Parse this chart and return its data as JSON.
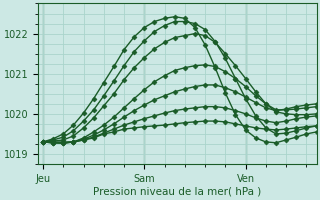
{
  "title": "Pression niveau de la mer( hPa )",
  "background_color": "#cce8e4",
  "grid_color": "#aad4cc",
  "line_color": "#1a5c28",
  "ylim": [
    1018.75,
    1022.65
  ],
  "yticks": [
    1019,
    1020,
    1021,
    1022
  ],
  "xtick_labels": [
    "Jeu",
    "Sam",
    "Ven"
  ],
  "xtick_positions": [
    0,
    10,
    20
  ],
  "xlim": [
    -0.5,
    27
  ],
  "series": [
    [
      1019.3,
      1019.3,
      1019.3,
      1019.3,
      1019.35,
      1019.4,
      1019.5,
      1019.55,
      1019.62,
      1019.65,
      1019.68,
      1019.7,
      1019.72,
      1019.75,
      1019.78,
      1019.8,
      1019.82,
      1019.82,
      1019.8,
      1019.75,
      1019.7,
      1019.65,
      1019.62,
      1019.6,
      1019.62,
      1019.65,
      1019.68,
      1019.7
    ],
    [
      1019.3,
      1019.28,
      1019.28,
      1019.3,
      1019.35,
      1019.42,
      1019.52,
      1019.62,
      1019.72,
      1019.8,
      1019.88,
      1019.95,
      1020.02,
      1020.08,
      1020.12,
      1020.15,
      1020.18,
      1020.18,
      1020.15,
      1020.08,
      1020.0,
      1019.9,
      1019.82,
      1019.78,
      1019.82,
      1019.88,
      1019.92,
      1019.95
    ],
    [
      1019.3,
      1019.28,
      1019.27,
      1019.3,
      1019.37,
      1019.47,
      1019.6,
      1019.75,
      1019.92,
      1020.08,
      1020.22,
      1020.35,
      1020.45,
      1020.55,
      1020.62,
      1020.68,
      1020.72,
      1020.72,
      1020.65,
      1020.55,
      1020.42,
      1020.28,
      1020.15,
      1020.08,
      1020.12,
      1020.18,
      1020.22,
      1020.25
    ],
    [
      1019.3,
      1019.28,
      1019.27,
      1019.3,
      1019.4,
      1019.55,
      1019.72,
      1019.92,
      1020.15,
      1020.38,
      1020.6,
      1020.8,
      1020.95,
      1021.08,
      1021.15,
      1021.2,
      1021.22,
      1021.18,
      1021.05,
      1020.88,
      1020.68,
      1020.45,
      1020.25,
      1020.1,
      1020.1,
      1020.12,
      1020.15,
      1020.18
    ],
    [
      1019.3,
      1019.32,
      1019.35,
      1019.45,
      1019.65,
      1019.9,
      1020.2,
      1020.5,
      1020.85,
      1021.15,
      1021.4,
      1021.62,
      1021.78,
      1021.9,
      1021.95,
      1022.0,
      1021.95,
      1021.78,
      1021.5,
      1021.2,
      1020.88,
      1020.55,
      1020.25,
      1020.05,
      1020.0,
      1019.98,
      1019.98,
      1020.0
    ],
    [
      1019.3,
      1019.35,
      1019.42,
      1019.58,
      1019.82,
      1020.1,
      1020.45,
      1020.82,
      1021.2,
      1021.55,
      1021.82,
      1022.05,
      1022.2,
      1022.3,
      1022.3,
      1022.25,
      1022.1,
      1021.8,
      1021.38,
      1020.88,
      1020.38,
      1019.95,
      1019.65,
      1019.5,
      1019.52,
      1019.58,
      1019.65,
      1019.7
    ],
    [
      1019.3,
      1019.38,
      1019.5,
      1019.72,
      1020.02,
      1020.38,
      1020.78,
      1021.18,
      1021.6,
      1021.92,
      1022.15,
      1022.3,
      1022.38,
      1022.42,
      1022.38,
      1022.15,
      1021.72,
      1021.15,
      1020.52,
      1019.98,
      1019.6,
      1019.4,
      1019.3,
      1019.28,
      1019.35,
      1019.42,
      1019.5,
      1019.55
    ]
  ],
  "marker": "D",
  "markersize": 2.5,
  "linewidth": 1.0
}
